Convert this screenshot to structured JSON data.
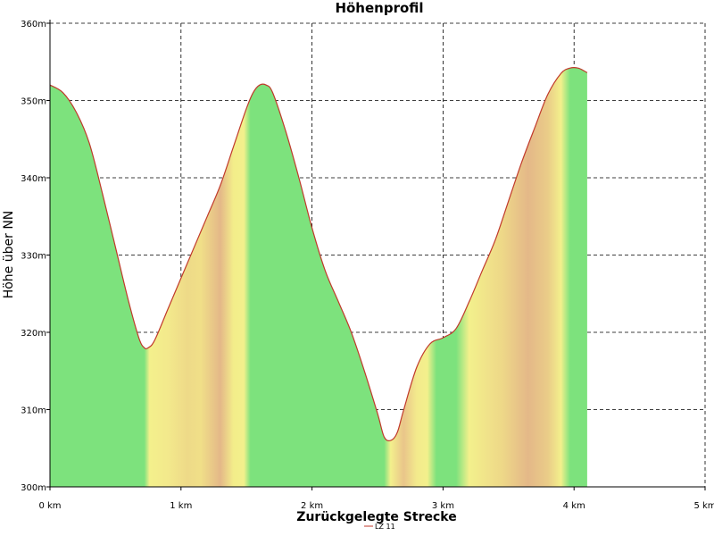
{
  "chart_data": {
    "type": "area",
    "title": "Höhenprofil",
    "xlabel": "Zurückgelegte Strecke",
    "ylabel": "Höhe über NN",
    "xlim": [
      0,
      5
    ],
    "ylim": [
      300,
      360
    ],
    "x_ticks": [
      0,
      1,
      2,
      3,
      4,
      5
    ],
    "x_tick_labels": [
      "0 km",
      "1 km",
      "2 km",
      "3 km",
      "4 km",
      "5 km"
    ],
    "y_ticks": [
      300,
      310,
      320,
      330,
      340,
      350,
      360
    ],
    "y_tick_labels": [
      "300m",
      "310m",
      "320m",
      "330m",
      "340m",
      "350m",
      "360m"
    ],
    "grid": true,
    "legend_position": "bottom-center",
    "series": [
      {
        "name": "LZ 11",
        "color": "#c0392b",
        "x": [
          0,
          0.1,
          0.2,
          0.3,
          0.4,
          0.5,
          0.6,
          0.68,
          0.72,
          0.75,
          0.8,
          0.9,
          1.0,
          1.1,
          1.2,
          1.3,
          1.4,
          1.5,
          1.55,
          1.6,
          1.65,
          1.7,
          1.8,
          1.9,
          2.0,
          2.1,
          2.2,
          2.3,
          2.4,
          2.5,
          2.55,
          2.6,
          2.65,
          2.7,
          2.8,
          2.9,
          3.0,
          3.1,
          3.2,
          3.3,
          3.4,
          3.5,
          3.6,
          3.7,
          3.8,
          3.9,
          3.97,
          4.03,
          4.08,
          4.1
        ],
        "y": [
          352,
          351,
          348.5,
          344.5,
          338,
          331,
          324,
          319.2,
          318,
          318,
          319,
          323,
          327,
          331,
          335,
          339,
          344,
          349,
          351,
          352,
          352,
          351,
          346,
          340,
          333.5,
          328,
          324,
          320,
          315,
          309.5,
          306.5,
          306,
          307,
          310,
          315.5,
          318.5,
          319.3,
          320.5,
          324,
          328,
          332,
          337,
          342,
          346.5,
          350.8,
          353.5,
          354.2,
          354.2,
          353.8,
          353.6
        ]
      }
    ],
    "fill_color_stops": [
      {
        "x": 0,
        "color": "#7de27d"
      },
      {
        "x": 0.72,
        "color": "#7de27d"
      },
      {
        "x": 0.76,
        "color": "#f3f08c"
      },
      {
        "x": 0.9,
        "color": "#f3e98c"
      },
      {
        "x": 1.05,
        "color": "#eeda88"
      },
      {
        "x": 1.15,
        "color": "#f0df88"
      },
      {
        "x": 1.3,
        "color": "#e4b888"
      },
      {
        "x": 1.4,
        "color": "#f3ed8a"
      },
      {
        "x": 1.48,
        "color": "#f3f08c"
      },
      {
        "x": 1.53,
        "color": "#7de27d"
      },
      {
        "x": 2.55,
        "color": "#7de27d"
      },
      {
        "x": 2.6,
        "color": "#f3f08c"
      },
      {
        "x": 2.7,
        "color": "#e9c58a"
      },
      {
        "x": 2.8,
        "color": "#f3ea8c"
      },
      {
        "x": 2.88,
        "color": "#f3f08c"
      },
      {
        "x": 2.95,
        "color": "#7de27d"
      },
      {
        "x": 3.1,
        "color": "#7de27d"
      },
      {
        "x": 3.2,
        "color": "#f3f08c"
      },
      {
        "x": 3.45,
        "color": "#eed888"
      },
      {
        "x": 3.65,
        "color": "#e4b888"
      },
      {
        "x": 3.8,
        "color": "#eacc88"
      },
      {
        "x": 3.9,
        "color": "#f3f08c"
      },
      {
        "x": 3.97,
        "color": "#7de27d"
      },
      {
        "x": 4.1,
        "color": "#7de27d"
      }
    ]
  }
}
